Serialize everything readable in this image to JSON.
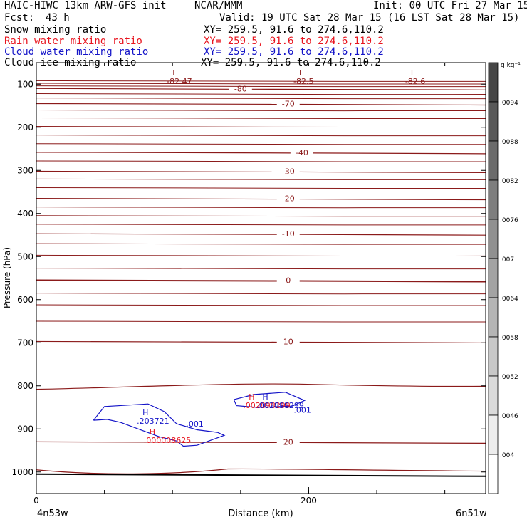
{
  "header": {
    "model": "HAIC-HIWC 13km ARW-GFS init",
    "org": "NCAR/MMM",
    "init": "Init: 00 UTC Fri 27 Mar 15",
    "fcst_label": "Fcst:",
    "fcst_value": "43 h",
    "valid": "Valid: 19 UTC Sat 28 Mar 15 (16 LST Sat 28 Mar 15)"
  },
  "fields": [
    {
      "name": "Snow mixing ratio",
      "xy": "XY= 259.5, 91.6 to 274.6,110.2",
      "color": "#000000"
    },
    {
      "name": "Rain water mixing ratio",
      "xy": "XY= 259.5, 91.6 to 274.6,110.2",
      "color": "#e8141e"
    },
    {
      "name": "Cloud water mixing ratio",
      "xy": "XY= 259.5, 91.6 to 274.6,110.2",
      "color": "#1414c8"
    },
    {
      "name": "Cloud ice mixing ratio",
      "xy": "XY= 259.5, 91.6 to 274.6,110.2",
      "color": "#000000"
    }
  ],
  "colorbar": {
    "unit": "g kg⁻¹",
    "labels": [
      ".0094",
      ".0088",
      ".0082",
      ".0076",
      ".007",
      ".0064",
      ".0058",
      ".0052",
      ".0046",
      ".004"
    ]
  },
  "chart_data": {
    "type": "contour",
    "xlabel": "Distance (km)",
    "ylabel": "Pressure (hPa)",
    "x_ticks": [
      0,
      200
    ],
    "x_tick_labels": [
      "0",
      "200"
    ],
    "y_ticks": [
      100,
      200,
      300,
      400,
      500,
      600,
      700,
      800,
      900,
      1000
    ],
    "y_tick_labels": [
      "100",
      "200",
      "300",
      "400",
      "500",
      "600",
      "700",
      "800",
      "900",
      "1000"
    ],
    "xlim": [
      0,
      330
    ],
    "ylim": [
      1050,
      50
    ],
    "endpoints": {
      "left": "4n53w",
      "right": "6n51w"
    },
    "temperature_contours": [
      {
        "label": "-80",
        "pressure": 110,
        "label_x": 150
      },
      {
        "label": "-70",
        "pressure": 145,
        "label_x": 185
      },
      {
        "label": "-40",
        "pressure": 258,
        "label_x": 195
      },
      {
        "label": "-30",
        "pressure": 302,
        "label_x": 185
      },
      {
        "label": "-20",
        "pressure": 365,
        "label_x": 185
      },
      {
        "label": "-10",
        "pressure": 447,
        "label_x": 185
      },
      {
        "label": "0",
        "pressure": 555,
        "label_x": 185
      },
      {
        "label": "10",
        "pressure": 697,
        "label_x": 185
      },
      {
        "label": "20",
        "pressure": 930,
        "label_x": 185
      }
    ],
    "extrema": [
      {
        "type": "L",
        "value": "-82.47",
        "x": 100,
        "pressure": 80,
        "color": "#8b1a1a"
      },
      {
        "type": "L",
        "value": "-82.5",
        "x": 193,
        "pressure": 80,
        "color": "#8b1a1a"
      },
      {
        "type": "L",
        "value": "-82.6",
        "x": 275,
        "pressure": 80,
        "color": "#8b1a1a"
      },
      {
        "type": "H",
        "value": ".203721",
        "x": 78,
        "pressure": 868,
        "color": "#1414c8"
      },
      {
        "type": "H",
        "value": ".000008625",
        "x": 83,
        "pressure": 913,
        "color": "#e8141e"
      },
      {
        "type": "H",
        "value": ".002898299",
        "x": 156,
        "pressure": 832,
        "color": "#e8141e"
      },
      {
        "type": "H",
        "value": ".002898299",
        "x": 166,
        "pressure": 832,
        "color": "#1414c8"
      }
    ],
    "cloud_water_contour": {
      "label": ".001",
      "color": "#1414c8"
    }
  }
}
